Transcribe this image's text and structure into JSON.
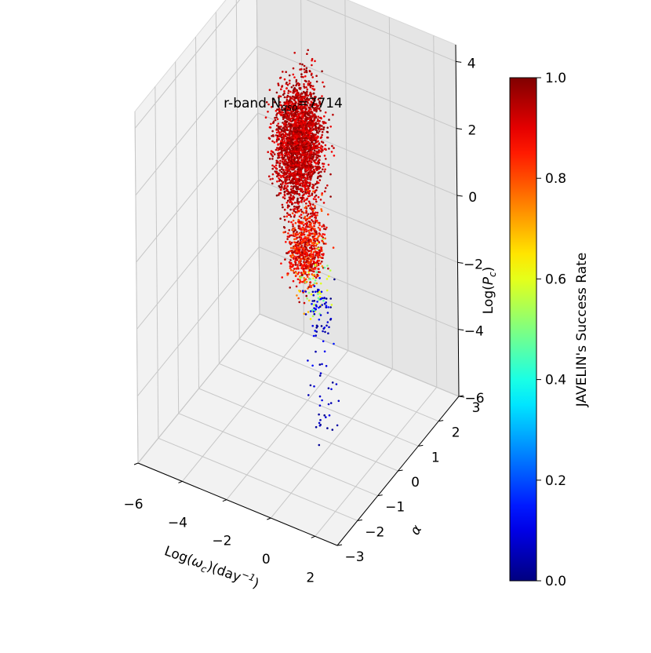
{
  "chart_data": {
    "type": "scatter",
    "title": {
      "prefix": "r-band N",
      "sub": "qso",
      "suffix": "=7714"
    },
    "xlabel": {
      "a": "Log(",
      "b": "ω",
      "c": "c",
      "d": ")(day",
      "e": "−1",
      "f": ")"
    },
    "ylabel": "α",
    "zlabel": {
      "a": "Log(",
      "b": "P",
      "c": "c",
      "d": ")"
    },
    "xlim": [
      -6,
      3
    ],
    "ylim": [
      -3,
      3
    ],
    "zlim": [
      -6,
      4.5
    ],
    "x_ticks": [
      "−6",
      "−4",
      "−2",
      "0",
      "2"
    ],
    "x_tick_values": [
      -6,
      -4,
      -2,
      0,
      2
    ],
    "y_ticks": [
      "−3",
      "−2",
      "−1",
      "0",
      "1",
      "2",
      "3"
    ],
    "y_tick_values": [
      -3,
      -2,
      -1,
      0,
      1,
      2,
      3
    ],
    "z_ticks": [
      "−6",
      "−4",
      "−2",
      "0",
      "2",
      "4"
    ],
    "z_tick_values": [
      -6,
      -4,
      -2,
      0,
      2,
      4
    ],
    "grid": true,
    "colormap": "jet",
    "colorbar": {
      "label": "JAVELIN's Success Rate",
      "range": [
        0,
        1
      ],
      "ticks": [
        "0.0",
        "0.2",
        "0.4",
        "0.6",
        "0.8",
        "1.0"
      ],
      "tick_values": [
        0,
        0.2,
        0.4,
        0.6,
        0.8,
        1.0
      ]
    },
    "point_groups": [
      {
        "x_range": [
          -2.2,
          -0.6
        ],
        "y_range": [
          -1.5,
          1.6
        ],
        "z_range": [
          0.2,
          4.9
        ],
        "rate_range": [
          0.88,
          1.0
        ]
      },
      {
        "x_range": [
          -1.4,
          0.0
        ],
        "y_range": [
          -1.6,
          0.8
        ],
        "z_range": [
          -1.4,
          1.4
        ],
        "rate_range": [
          0.78,
          0.98
        ]
      },
      {
        "x_range": [
          -0.8,
          0.2
        ],
        "y_range": [
          -1.4,
          0.4
        ],
        "z_range": [
          -2.2,
          0.2
        ],
        "rate_range": [
          0.45,
          0.75
        ]
      },
      {
        "x_range": [
          -0.4,
          0.6
        ],
        "y_range": [
          -1.5,
          0.2
        ],
        "z_range": [
          -3.0,
          -0.3
        ],
        "rate_range": [
          0.0,
          0.15
        ]
      },
      {
        "x_range": [
          0.0,
          1.2
        ],
        "y_range": [
          -1.8,
          0.0
        ],
        "z_range": [
          -5.5,
          -2.5
        ],
        "rate_range": [
          0.0,
          0.1
        ]
      }
    ]
  }
}
